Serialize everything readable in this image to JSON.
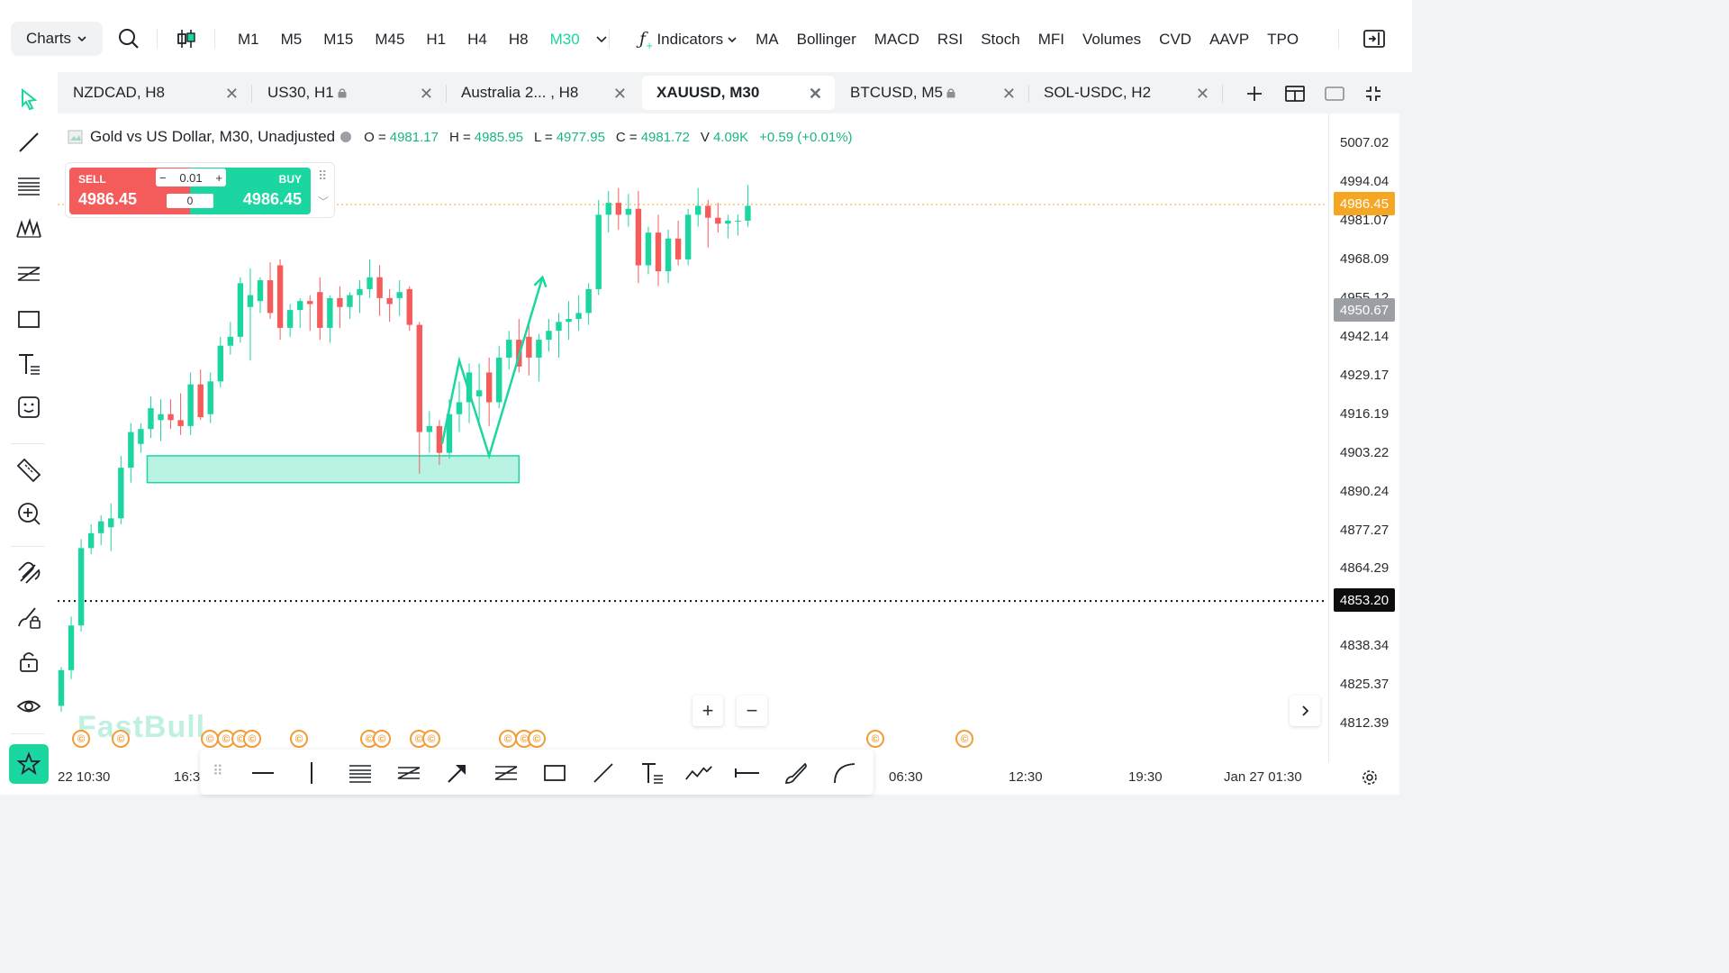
{
  "topbar": {
    "charts_label": "Charts",
    "timeframes": [
      "M1",
      "M5",
      "M15",
      "M45",
      "H1",
      "H4",
      "H8",
      "M30"
    ],
    "active_timeframe": "M30",
    "indicators_label": "Indicators",
    "indicator_items": [
      "MA",
      "Bollinger",
      "MACD",
      "RSI",
      "Stoch",
      "MFI",
      "Volumes",
      "CVD",
      "AAVP",
      "TPO"
    ]
  },
  "tabs": [
    {
      "label": "NZDCAD, H8",
      "locked": false,
      "active": false
    },
    {
      "label": "US30, H1",
      "locked": true,
      "active": false
    },
    {
      "label": "Australia 2... , H8",
      "locked": false,
      "active": false
    },
    {
      "label": "XAUUSD, M30",
      "locked": false,
      "active": true
    },
    {
      "label": "BTCUSD, M5",
      "locked": true,
      "active": false
    },
    {
      "label": "SOL-USDC, H2",
      "locked": false,
      "active": false
    }
  ],
  "legend": {
    "symbol": "Gold vs US Dollar, M30, Unadjusted",
    "o_key": "O =",
    "o": "4981.17",
    "h_key": "H =",
    "h": "4985.95",
    "l_key": "L =",
    "l": "4977.95",
    "c_key": "C =",
    "c": "4981.72",
    "v_key": "V",
    "v": "4.09K",
    "change": "+0.59 (+0.01%)"
  },
  "trade": {
    "sell_label": "SELL",
    "sell_price": "4986.45",
    "buy_label": "BUY",
    "buy_price": "4986.45",
    "lot": "0.01",
    "spread": "0"
  },
  "price_axis": [
    "5007.02",
    "4994.04",
    "4981.07",
    "4968.09",
    "4955.12",
    "4942.14",
    "4929.17",
    "4916.19",
    "4903.22",
    "4890.24",
    "4877.27",
    "4864.29",
    "4838.34",
    "4825.37",
    "4812.39"
  ],
  "price_tags": {
    "current": "4986.45",
    "gray": "4950.67",
    "line": "4853.20"
  },
  "time_axis": [
    "22 10:30",
    "16:3",
    "06:30",
    "12:30",
    "19:30",
    "Jan 27 01:30"
  ],
  "watermark": "FastBull",
  "event_icon": "©",
  "colors": {
    "up": "#1bd6a1",
    "down": "#f45b5b",
    "accent": "#1bd6a1",
    "current_price": "#f5a623"
  },
  "chart_data": {
    "type": "candlestick",
    "symbol": "XAUUSD",
    "timeframe": "M30",
    "ylim": [
      4806,
      5013
    ],
    "candles": [
      {
        "o": 4818,
        "h": 4831,
        "l": 4816,
        "c": 4830
      },
      {
        "o": 4830,
        "h": 4848,
        "l": 4827,
        "c": 4845
      },
      {
        "o": 4845,
        "h": 4874,
        "l": 4843,
        "c": 4871
      },
      {
        "o": 4871,
        "h": 4879,
        "l": 4869,
        "c": 4876
      },
      {
        "o": 4876,
        "h": 4882,
        "l": 4872,
        "c": 4880
      },
      {
        "o": 4878,
        "h": 4886,
        "l": 4870,
        "c": 4881
      },
      {
        "o": 4881,
        "h": 4902,
        "l": 4879,
        "c": 4898
      },
      {
        "o": 4898,
        "h": 4913,
        "l": 4893,
        "c": 4910
      },
      {
        "o": 4906,
        "h": 4913,
        "l": 4903,
        "c": 4911
      },
      {
        "o": 4911,
        "h": 4922,
        "l": 4908,
        "c": 4918
      },
      {
        "o": 4914,
        "h": 4921,
        "l": 4907,
        "c": 4916
      },
      {
        "o": 4916,
        "h": 4921,
        "l": 4911,
        "c": 4914
      },
      {
        "o": 4914,
        "h": 4923,
        "l": 4909,
        "c": 4912
      },
      {
        "o": 4912,
        "h": 4930,
        "l": 4909,
        "c": 4926
      },
      {
        "o": 4926,
        "h": 4931,
        "l": 4914,
        "c": 4915
      },
      {
        "o": 4916,
        "h": 4930,
        "l": 4913,
        "c": 4927
      },
      {
        "o": 4927,
        "h": 4942,
        "l": 4925,
        "c": 4939
      },
      {
        "o": 4939,
        "h": 4947,
        "l": 4936,
        "c": 4942
      },
      {
        "o": 4942,
        "h": 4962,
        "l": 4940,
        "c": 4960
      },
      {
        "o": 4952,
        "h": 4965,
        "l": 4934,
        "c": 4956
      },
      {
        "o": 4954,
        "h": 4962,
        "l": 4950,
        "c": 4961
      },
      {
        "o": 4961,
        "h": 4967,
        "l": 4948,
        "c": 4950
      },
      {
        "o": 4966,
        "h": 4968,
        "l": 4941,
        "c": 4945
      },
      {
        "o": 4945,
        "h": 4953,
        "l": 4942,
        "c": 4951
      },
      {
        "o": 4951,
        "h": 4955,
        "l": 4945,
        "c": 4954
      },
      {
        "o": 4954,
        "h": 4956,
        "l": 4944,
        "c": 4953
      },
      {
        "o": 4957,
        "h": 4962,
        "l": 4941,
        "c": 4945
      },
      {
        "o": 4945,
        "h": 4956,
        "l": 4940,
        "c": 4955
      },
      {
        "o": 4955,
        "h": 4959,
        "l": 4945,
        "c": 4952
      },
      {
        "o": 4952,
        "h": 4957,
        "l": 4948,
        "c": 4956
      },
      {
        "o": 4956,
        "h": 4961,
        "l": 4950,
        "c": 4958
      },
      {
        "o": 4958,
        "h": 4968,
        "l": 4955,
        "c": 4962
      },
      {
        "o": 4962,
        "h": 4966,
        "l": 4949,
        "c": 4955
      },
      {
        "o": 4955,
        "h": 4958,
        "l": 4947,
        "c": 4953
      },
      {
        "o": 4955,
        "h": 4961,
        "l": 4949,
        "c": 4957
      },
      {
        "o": 4958,
        "h": 4959,
        "l": 4944,
        "c": 4946
      },
      {
        "o": 4946,
        "h": 4947,
        "l": 4896,
        "c": 4910
      },
      {
        "o": 4910,
        "h": 4917,
        "l": 4903,
        "c": 4912
      },
      {
        "o": 4912,
        "h": 4914,
        "l": 4899,
        "c": 4903
      },
      {
        "o": 4903,
        "h": 4921,
        "l": 4901,
        "c": 4916
      },
      {
        "o": 4916,
        "h": 4927,
        "l": 4910,
        "c": 4920
      },
      {
        "o": 4920,
        "h": 4933,
        "l": 4913,
        "c": 4930
      },
      {
        "o": 4922,
        "h": 4933,
        "l": 4913,
        "c": 4924
      },
      {
        "o": 4930,
        "h": 4935,
        "l": 4912,
        "c": 4920
      },
      {
        "o": 4920,
        "h": 4939,
        "l": 4918,
        "c": 4935
      },
      {
        "o": 4935,
        "h": 4944,
        "l": 4931,
        "c": 4941
      },
      {
        "o": 4941,
        "h": 4948,
        "l": 4930,
        "c": 4932
      },
      {
        "o": 4942,
        "h": 4946,
        "l": 4929,
        "c": 4935
      },
      {
        "o": 4935,
        "h": 4943,
        "l": 4927,
        "c": 4941
      },
      {
        "o": 4941,
        "h": 4948,
        "l": 4937,
        "c": 4944
      },
      {
        "o": 4944,
        "h": 4950,
        "l": 4935,
        "c": 4947
      },
      {
        "o": 4947,
        "h": 4954,
        "l": 4941,
        "c": 4948
      },
      {
        "o": 4948,
        "h": 4956,
        "l": 4944,
        "c": 4950
      },
      {
        "o": 4950,
        "h": 4960,
        "l": 4946,
        "c": 4958
      },
      {
        "o": 4958,
        "h": 4988,
        "l": 4956,
        "c": 4983
      },
      {
        "o": 4983,
        "h": 4991,
        "l": 4977,
        "c": 4987
      },
      {
        "o": 4987,
        "h": 4992,
        "l": 4978,
        "c": 4983
      },
      {
        "o": 4983,
        "h": 4990,
        "l": 4979,
        "c": 4985
      },
      {
        "o": 4985,
        "h": 4991,
        "l": 4960,
        "c": 4966
      },
      {
        "o": 4966,
        "h": 4979,
        "l": 4963,
        "c": 4977
      },
      {
        "o": 4977,
        "h": 4983,
        "l": 4959,
        "c": 4964
      },
      {
        "o": 4964,
        "h": 4978,
        "l": 4960,
        "c": 4975
      },
      {
        "o": 4975,
        "h": 4981,
        "l": 4966,
        "c": 4968
      },
      {
        "o": 4968,
        "h": 4985,
        "l": 4966,
        "c": 4983
      },
      {
        "o": 4983,
        "h": 4992,
        "l": 4979,
        "c": 4986
      },
      {
        "o": 4986,
        "h": 4988,
        "l": 4972,
        "c": 4982
      },
      {
        "o": 4982,
        "h": 4987,
        "l": 4977,
        "c": 4980
      },
      {
        "o": 4980,
        "h": 4983,
        "l": 4975,
        "c": 4981
      },
      {
        "o": 4981,
        "h": 4983,
        "l": 4976,
        "c": 4981
      },
      {
        "o": 4981,
        "h": 4993,
        "l": 4979,
        "c": 4986
      }
    ],
    "zone": {
      "from_index": 9,
      "to_index": 46,
      "low": 4893,
      "high": 4902
    },
    "current_price": 4986.45,
    "horizontal_line": 4853.2,
    "zigzag": [
      {
        "index": 53,
        "price": 4934
      },
      {
        "index": 56,
        "price": 4926
      },
      {
        "index": 58,
        "price": 4902
      },
      {
        "index": 63,
        "price": 4962
      }
    ]
  }
}
